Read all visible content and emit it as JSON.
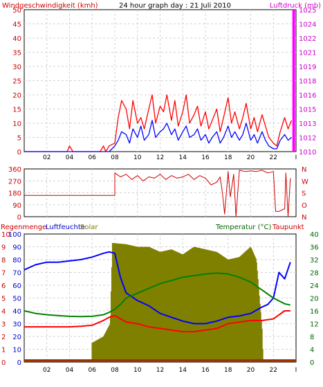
{
  "chart_data": [
    {
      "type": "line",
      "panel": "wind-pressure",
      "title": "24 hour graph day : 21 Juli 2010",
      "left_label": "Windgeschwindigkeit (kmh)",
      "right_label": "Luftdruck (mb)",
      "x_ticks": [
        "02",
        "04",
        "06",
        "08",
        "10",
        "12",
        "14",
        "16",
        "18",
        "20",
        "22",
        "I"
      ],
      "y_ticks_left": [
        "0",
        "5",
        "10",
        "15",
        "20",
        "25",
        "30",
        "35",
        "40",
        "45",
        "50"
      ],
      "y_ticks_right": [
        "1010",
        "1012",
        "1013",
        "1015",
        "1016",
        "1018",
        "1019",
        "1021",
        "1022",
        "1024",
        "1025"
      ],
      "ylim": [
        0,
        50
      ],
      "series": [
        {
          "color": "#ff0000",
          "x": [
            0,
            3.8,
            4,
            4.3,
            6,
            6.7,
            7,
            7.2,
            7.5,
            8,
            8.3,
            8.6,
            9,
            9.3,
            9.6,
            10,
            10.3,
            10.6,
            11,
            11.3,
            11.6,
            12,
            12.3,
            12.6,
            13,
            13.3,
            13.6,
            14,
            14.3,
            14.6,
            15,
            15.3,
            15.6,
            16,
            16.3,
            16.6,
            17,
            17.3,
            17.6,
            18,
            18.3,
            18.6,
            19,
            19.3,
            19.6,
            20,
            20.3,
            20.6,
            21,
            21.3,
            21.6,
            22,
            22.3,
            22.6,
            23,
            23.3,
            23.6
          ],
          "values": [
            0,
            0,
            2,
            0,
            0,
            0,
            2,
            0,
            2,
            3,
            12,
            18,
            15,
            8,
            18,
            10,
            12,
            8,
            15,
            20,
            10,
            16,
            14,
            20,
            11,
            18,
            9,
            14,
            20,
            10,
            13,
            16,
            9,
            14,
            8,
            11,
            15,
            7,
            12,
            19,
            10,
            14,
            8,
            12,
            17,
            8,
            12,
            7,
            13,
            9,
            5,
            3,
            2,
            7,
            12,
            8,
            11
          ]
        },
        {
          "color": "#0000ff",
          "x": [
            0,
            7,
            7.5,
            8,
            8.3,
            8.6,
            9,
            9.3,
            9.6,
            10,
            10.3,
            10.6,
            11,
            11.3,
            11.6,
            12,
            12.3,
            12.6,
            13,
            13.3,
            13.6,
            14,
            14.3,
            14.6,
            15,
            15.3,
            15.6,
            16,
            16.3,
            16.6,
            17,
            17.3,
            17.6,
            18,
            18.3,
            18.6,
            19,
            19.3,
            19.6,
            20,
            20.3,
            20.6,
            21,
            21.3,
            21.6,
            22,
            22.3,
            22.6,
            23,
            23.3,
            23.6
          ],
          "values": [
            0,
            0,
            0,
            2,
            4,
            7,
            6,
            3,
            8,
            5,
            9,
            4,
            6,
            11,
            5,
            7,
            8,
            10,
            6,
            8,
            4,
            7,
            9,
            5,
            6,
            8,
            4,
            6,
            3,
            5,
            7,
            3,
            5,
            9,
            5,
            7,
            4,
            6,
            10,
            4,
            6,
            3,
            7,
            4,
            2,
            1,
            1,
            4,
            6,
            4,
            5
          ]
        },
        {
          "color": "#ff00ff",
          "x": [
            23.8,
            23.8
          ],
          "values": [
            0,
            50
          ]
        }
      ]
    },
    {
      "type": "line",
      "panel": "wind-direction",
      "y_ticks_left": [
        "0",
        "90",
        "180",
        "270",
        "360"
      ],
      "y_ticks_right": [
        "N",
        "O",
        "S",
        "W",
        "N"
      ],
      "ylim": [
        0,
        360
      ],
      "series": [
        {
          "color": "#cc0000",
          "x": [
            0,
            8,
            8,
            8.5,
            9,
            9.5,
            10,
            10.5,
            11,
            11.5,
            12,
            12.5,
            13,
            13.5,
            14,
            14.5,
            15,
            15.5,
            16,
            16.5,
            17,
            17.3,
            17.5,
            17.7,
            18,
            18.2,
            18.5,
            18.7,
            19,
            19.5,
            20,
            20.5,
            21,
            21.5,
            22,
            22.2,
            22.5,
            23,
            23.1,
            23.3,
            23.5
          ],
          "values": [
            160,
            160,
            330,
            300,
            320,
            280,
            310,
            270,
            300,
            290,
            320,
            280,
            310,
            290,
            300,
            320,
            280,
            310,
            290,
            240,
            260,
            300,
            180,
            20,
            340,
            150,
            320,
            0,
            350,
            340,
            345,
            340,
            350,
            330,
            340,
            40,
            40,
            60,
            330,
            0,
            290
          ]
        }
      ]
    },
    {
      "type": "line",
      "panel": "rain-humidity-solar-temperature",
      "labels": [
        "Regenmenge",
        "Luftfeuchte",
        "Solar",
        "Temperatur (°C)",
        "Taupunkt"
      ],
      "x_ticks": [
        "02",
        "04",
        "06",
        "08",
        "10",
        "12",
        "14",
        "16",
        "18",
        "20",
        "22",
        "I"
      ],
      "y_ticks_left_outer": [
        "0",
        "1",
        "2",
        "3",
        "4",
        "5",
        "6",
        "7",
        "8",
        "9",
        "10"
      ],
      "y_ticks_left_inner": [
        "0",
        "10",
        "20",
        "30",
        "40",
        "50",
        "60",
        "70",
        "80",
        "90",
        "100"
      ],
      "y_ticks_right": [
        "0",
        "4",
        "8",
        "12",
        "16",
        "20",
        "24",
        "28",
        "32",
        "36",
        "40"
      ],
      "ylim_percent": [
        0,
        100
      ],
      "series": [
        {
          "name": "Luftfeuchte",
          "color": "#0000ff",
          "x": [
            0,
            1,
            2,
            3,
            4,
            5,
            6,
            7,
            7.5,
            8,
            8.5,
            9,
            10,
            11,
            12,
            13,
            14,
            15,
            16,
            17,
            18,
            19,
            20,
            21,
            21.5,
            22,
            22.5,
            23,
            23.5
          ],
          "values": [
            72,
            76,
            78,
            78,
            79,
            80,
            82,
            85,
            86,
            85,
            66,
            54,
            48,
            44,
            38,
            35,
            32,
            30,
            30,
            32,
            35,
            36,
            38,
            43,
            45,
            50,
            70,
            65,
            78
          ]
        },
        {
          "name": "Temperatur",
          "color": "#008000",
          "x": [
            0,
            1,
            2,
            3,
            4,
            5,
            6,
            7,
            7.5,
            8,
            8.5,
            9,
            10,
            11,
            12,
            13,
            14,
            15,
            16,
            17,
            18,
            19,
            20,
            21,
            22,
            23,
            23.5
          ],
          "values": [
            16,
            15.2,
            14.8,
            14.5,
            14.3,
            14.2,
            14.3,
            14.8,
            15.5,
            16.5,
            18,
            20,
            21.5,
            23,
            24.5,
            25.5,
            26.5,
            27,
            27.5,
            27.8,
            27.5,
            26.5,
            25,
            22.5,
            20,
            18.2,
            17.8
          ]
        },
        {
          "name": "Taupunkt",
          "color": "#ff0000",
          "x": [
            0,
            1,
            2,
            3,
            4,
            5,
            6,
            7,
            7.5,
            8,
            8.5,
            9,
            10,
            11,
            12,
            13,
            14,
            15,
            16,
            17,
            18,
            19,
            20,
            21,
            22,
            23,
            23.5
          ],
          "values": [
            11,
            11,
            11,
            11,
            11,
            11.2,
            11.5,
            13,
            14,
            14.5,
            13.5,
            12.5,
            12,
            11,
            10.5,
            10,
            9.5,
            9.5,
            10,
            10.5,
            12,
            12.5,
            13,
            13,
            13.5,
            16,
            16
          ]
        },
        {
          "name": "Solar",
          "color": "#808000",
          "x": [
            6,
            7,
            7.6,
            7.8,
            9,
            10,
            11,
            12,
            13,
            14,
            15,
            16,
            17,
            18,
            19,
            20,
            20.5,
            21,
            21.1
          ],
          "values": [
            15,
            20,
            30,
            93,
            92,
            90,
            90,
            86,
            88,
            84,
            90,
            88,
            86,
            80,
            82,
            90,
            80,
            26,
            0
          ]
        },
        {
          "name": "Regenmenge",
          "color": "#993300",
          "x": [
            0,
            24
          ],
          "values": [
            0,
            0
          ]
        }
      ]
    }
  ]
}
